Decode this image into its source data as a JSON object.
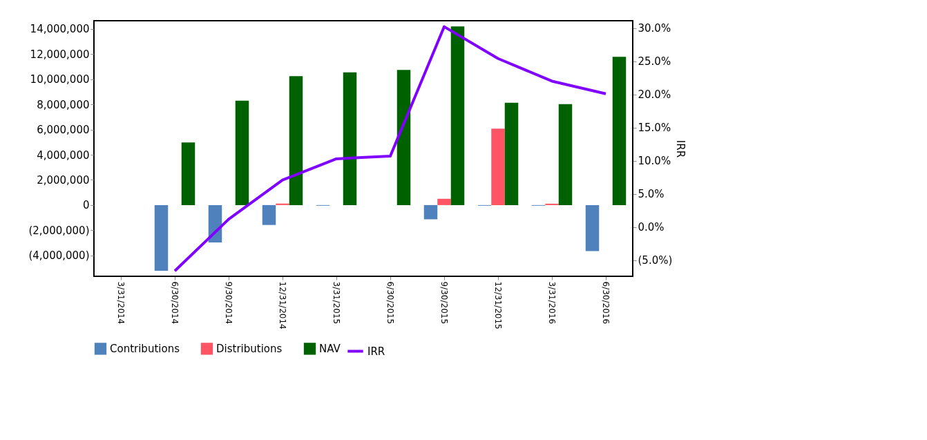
{
  "chart_data": {
    "type": "bar",
    "ylabel": null,
    "y2label": "IRR",
    "legend": "bottom",
    "grid": false,
    "categories": [
      "3/31/2014",
      "6/30/2014",
      "9/30/2014",
      "12/31/2014",
      "3/31/2015",
      "6/30/2015",
      "9/30/2015",
      "12/31/2015",
      "3/31/2016",
      "6/30/2016"
    ],
    "series": [
      {
        "name": "Contributions",
        "color": "#4f81bd",
        "values": [
          null,
          -5220000,
          -2970000,
          -1580000,
          -50000,
          null,
          -1130000,
          -50000,
          -50000,
          -3650000
        ]
      },
      {
        "name": "Distributions",
        "color": "#ff5464",
        "values": [
          null,
          null,
          null,
          120000,
          null,
          null,
          500000,
          6070000,
          110000,
          null
        ]
      },
      {
        "name": "NAV",
        "color": "#006100",
        "values": [
          null,
          4980000,
          8300000,
          10250000,
          10550000,
          10740000,
          14200000,
          8130000,
          8020000,
          11780000
        ]
      },
      {
        "name": "IRR",
        "color": "#8000ff",
        "type": "line",
        "axis": "y2",
        "values": [
          null,
          -6.6,
          1.2,
          7.1,
          10.3,
          10.7,
          30.2,
          25.4,
          22.0,
          20.1
        ]
      }
    ],
    "ylim": [
      -5660000,
      14650000
    ],
    "yticks": [
      {
        "value": -4000000,
        "label": "(4,000,000)"
      },
      {
        "value": -2000000,
        "label": "(2,000,000)"
      },
      0,
      {
        "value": 2000000,
        "label": "2,000,000"
      },
      {
        "value": 4000000,
        "label": "4,000,000"
      },
      {
        "value": 6000000,
        "label": "6,000,000"
      },
      {
        "value": 8000000,
        "label": "8,000,000"
      },
      {
        "value": 10000000,
        "label": "10,000,000"
      },
      {
        "value": 12000000,
        "label": "12,000,000"
      },
      {
        "value": 14000000,
        "label": "14,000,000"
      }
    ],
    "y2lim": [
      -7.4,
      31.1
    ],
    "y2ticks": [
      {
        "value": -5,
        "label": "(5.0%)"
      },
      {
        "value": 0,
        "label": "0.0%"
      },
      {
        "value": 5,
        "label": "5.0%"
      },
      {
        "value": 10,
        "label": "10.0%"
      },
      {
        "value": 15,
        "label": "15.0%"
      },
      {
        "value": 20,
        "label": "20.0%"
      },
      {
        "value": 25,
        "label": "25.0%"
      },
      {
        "value": 30,
        "label": "30.0%"
      }
    ]
  }
}
